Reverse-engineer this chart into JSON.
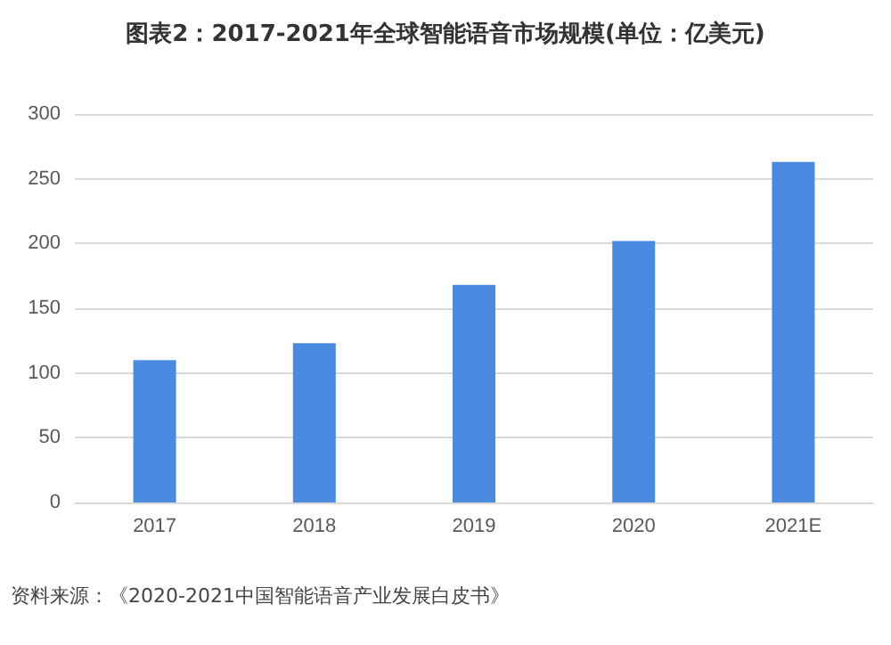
{
  "chart_data": {
    "type": "bar",
    "title": "图表2：2017-2021年全球智能语音市场规模(单位：亿美元)",
    "categories": [
      "2017",
      "2018",
      "2019",
      "2020",
      "2021E"
    ],
    "values": [
      110,
      123,
      168,
      202,
      263
    ],
    "color": "#4a8ae0",
    "ylim": [
      0,
      300
    ],
    "yticks": [
      0,
      50,
      100,
      150,
      200,
      250,
      300
    ],
    "grid": "y",
    "annotations": [
      "资料来源：《2020-2021中国智能语音产业发展白皮书》"
    ]
  }
}
